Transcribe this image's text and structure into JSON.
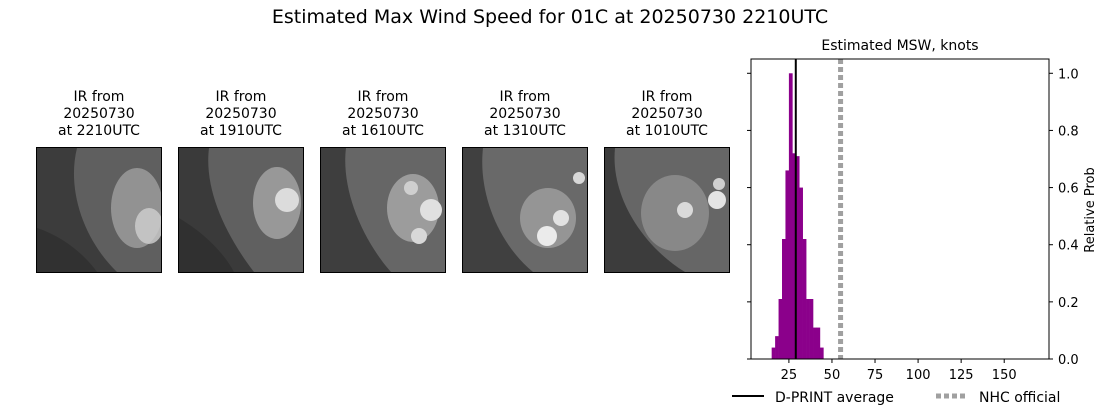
{
  "title": "Estimated Max Wind Speed for 01C at 20250730 2210UTC",
  "panels": [
    {
      "label": "IR from\n20250730\nat 2210UTC"
    },
    {
      "label": "IR from\n20250730\nat 1910UTC"
    },
    {
      "label": "IR from\n20250730\nat 1610UTC"
    },
    {
      "label": "IR from\n20250730\nat 1310UTC"
    },
    {
      "label": "IR from\n20250730\nat 1010UTC"
    }
  ],
  "chart_data": {
    "type": "bar",
    "title": "Estimated MSW, knots",
    "xlabel": "",
    "ylabel": "Relative Prob",
    "xlim": [
      3,
      176
    ],
    "ylim": [
      0,
      1.05
    ],
    "xticks": [
      25,
      50,
      75,
      100,
      125,
      150
    ],
    "yticks": [
      0.0,
      0.2,
      0.4,
      0.6,
      0.8,
      1.0
    ],
    "bar_color": "#8b008b",
    "bin_width": 2,
    "bins": [
      {
        "x": 16,
        "y": 0.04
      },
      {
        "x": 18,
        "y": 0.08
      },
      {
        "x": 20,
        "y": 0.21
      },
      {
        "x": 22,
        "y": 0.42
      },
      {
        "x": 24,
        "y": 0.66
      },
      {
        "x": 26,
        "y": 1.0
      },
      {
        "x": 28,
        "y": 0.72
      },
      {
        "x": 30,
        "y": 0.71
      },
      {
        "x": 32,
        "y": 0.6
      },
      {
        "x": 34,
        "y": 0.42
      },
      {
        "x": 36,
        "y": 0.21
      },
      {
        "x": 38,
        "y": 0.21
      },
      {
        "x": 40,
        "y": 0.11
      },
      {
        "x": 42,
        "y": 0.11
      },
      {
        "x": 44,
        "y": 0.04
      }
    ],
    "dprint_average": 29,
    "nhc_official": 55,
    "legend": [
      {
        "label": "D-PRINT average",
        "style": "solid",
        "color": "#000000"
      },
      {
        "label": "NHC official",
        "style": "dotted",
        "color": "#a0a0a0"
      }
    ],
    "legend_position": "bottom"
  }
}
